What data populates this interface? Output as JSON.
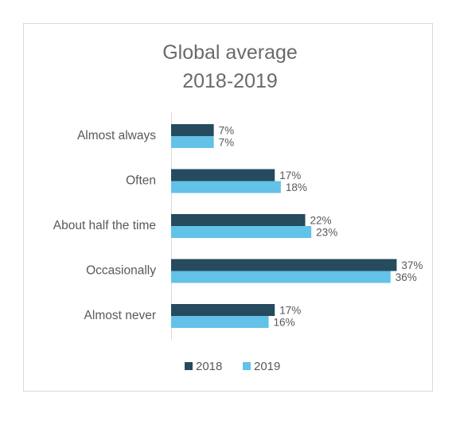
{
  "chart_data": {
    "type": "bar",
    "orientation": "horizontal",
    "title": [
      "Global average",
      "2018-2019"
    ],
    "categories": [
      "Almost always",
      "Often",
      "About half the time",
      "Occasionally",
      "Almost never"
    ],
    "series": [
      {
        "name": "2018",
        "color": "#264a5e",
        "values": [
          7,
          17,
          22,
          37,
          17
        ]
      },
      {
        "name": "2019",
        "color": "#62c2e8",
        "values": [
          7,
          18,
          23,
          36,
          16
        ]
      }
    ],
    "value_suffix": "%",
    "xlim": [
      0,
      40
    ],
    "grid": false,
    "legend_position": "bottom"
  }
}
